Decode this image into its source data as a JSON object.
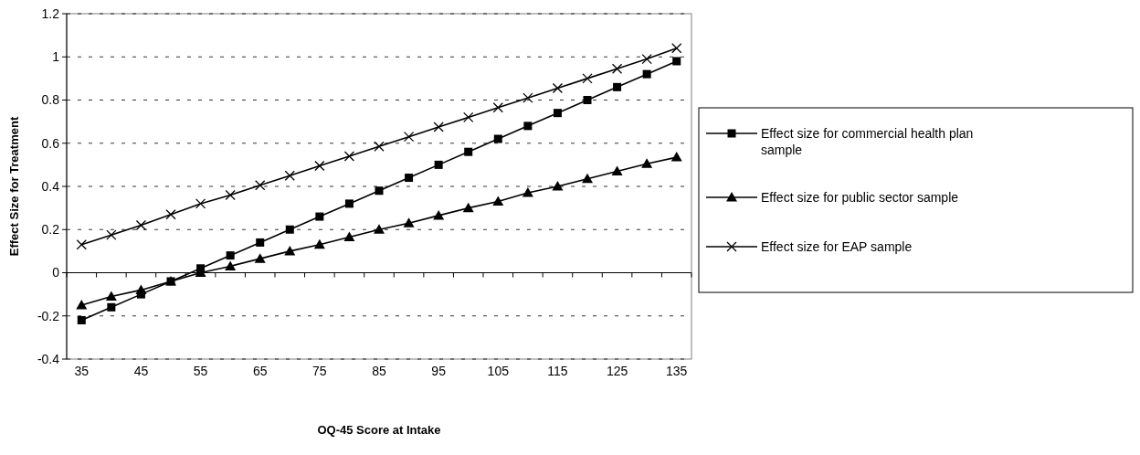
{
  "chart_data": {
    "type": "line",
    "xlabel": "OQ-45 Score at Intake",
    "ylabel": "Effect Size for Treatment",
    "categories": [
      "35",
      null,
      "45",
      null,
      "55",
      null,
      "65",
      null,
      "75",
      null,
      "85",
      null,
      "95",
      null,
      "105",
      null,
      "115",
      null,
      "125",
      null,
      "135"
    ],
    "series": [
      {
        "name": "Effect size for commercial health plan sample",
        "color": "#000000",
        "marker": "square",
        "values": [
          -0.22,
          -0.16,
          -0.1,
          -0.04,
          0.02,
          0.08,
          0.14,
          0.2,
          0.26,
          0.32,
          0.38,
          0.44,
          0.5,
          0.56,
          0.62,
          0.68,
          0.74,
          0.8,
          0.86,
          0.92,
          0.98
        ]
      },
      {
        "name": "Effect size for public sector sample",
        "color": "#000000",
        "marker": "triangle",
        "values": [
          -0.15,
          -0.11,
          -0.08,
          -0.04,
          0,
          0.03,
          0.065,
          0.1,
          0.13,
          0.165,
          0.2,
          0.23,
          0.265,
          0.3,
          0.33,
          0.37,
          0.4,
          0.435,
          0.47,
          0.505,
          0.535
        ]
      },
      {
        "name": "Effect size for EAP sample",
        "color": "#000000",
        "marker": "cross",
        "values": [
          0.13,
          0.175,
          0.22,
          0.27,
          0.32,
          0.36,
          0.405,
          0.45,
          0.495,
          0.54,
          0.585,
          0.63,
          0.675,
          0.72,
          0.765,
          0.81,
          0.855,
          0.9,
          0.945,
          0.99,
          1.04
        ]
      }
    ],
    "ylim": [
      -0.4,
      1.2
    ],
    "yticks": [
      -0.4,
      -0.2,
      0,
      0.2,
      0.4,
      0.6,
      0.8,
      1,
      1.2
    ],
    "grid": "y",
    "legend": "right"
  }
}
